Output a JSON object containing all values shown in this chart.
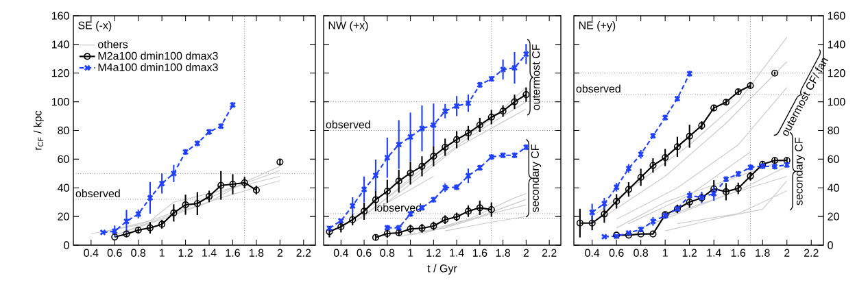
{
  "chart_data": [
    {
      "type": "line",
      "title": "SE (-x)",
      "ylabel": "r$_{CF}$ / kpc",
      "xlim": [
        0.25,
        2.3
      ],
      "ylim": [
        0,
        160
      ],
      "xticks": [
        0.4,
        0.6,
        0.8,
        1,
        1.2,
        1.4,
        1.6,
        1.8,
        2,
        2.2
      ],
      "yticks": [
        0,
        20,
        40,
        60,
        80,
        100,
        120,
        140,
        160
      ],
      "legend": "top left",
      "grid": false,
      "series": [
        {
          "name": "others",
          "color": "#cccccc",
          "marker": "none",
          "line_style": "solid",
          "x": [
            0.4,
            0.8,
            1.2,
            1.6,
            2.0
          ],
          "values": [
            8,
            14,
            26,
            40,
            52
          ]
        },
        {
          "color": "#cccccc",
          "marker": "none",
          "line_style": "solid",
          "x": [
            0.5,
            0.9,
            1.1,
            1.5,
            2.0
          ],
          "values": [
            9,
            17,
            30,
            38,
            48
          ]
        },
        {
          "color": "#cccccc",
          "marker": "none",
          "line_style": "solid",
          "x": [
            0.6,
            1.0,
            1.4,
            1.7,
            2.0
          ],
          "values": [
            7,
            18,
            30,
            44,
            55
          ]
        },
        {
          "color": "#cccccc",
          "marker": "none",
          "line_style": "solid",
          "x": [
            0.7,
            1.1,
            1.5,
            2.0
          ],
          "values": [
            10,
            22,
            33,
            45
          ]
        },
        {
          "name": "M2a100 dmin100 dmax3",
          "color": "#000000",
          "marker": "circle",
          "line_style": "solid",
          "x": [
            0.6,
            0.7,
            0.8,
            0.9,
            1.0,
            1.1,
            1.2,
            1.3,
            1.4,
            1.5,
            1.6,
            1.7,
            1.8,
            1.9,
            2.0
          ],
          "values": [
            5.7,
            7.8,
            10.5,
            12.1,
            14.6,
            22.5,
            28.2,
            29,
            34,
            41.7,
            42.5,
            43.6,
            38.4,
            null,
            58
          ],
          "errors": [
            null,
            2,
            2,
            4,
            3,
            6,
            7,
            8,
            4,
            10,
            7,
            4,
            3,
            null,
            2
          ]
        },
        {
          "name": "M4a100 dmin100 dmax3",
          "color": "#2040ff",
          "marker": "cross",
          "line_style": "dashed",
          "x": [
            0.5,
            0.6,
            0.7,
            0.8,
            0.9,
            1.0,
            1.1,
            1.2,
            1.3,
            1.4,
            1.5,
            1.6
          ],
          "values": [
            8.9,
            9.7,
            16.6,
            21.7,
            33,
            43,
            50,
            65,
            71,
            79,
            83,
            97.8
          ],
          "errors": [
            null,
            4,
            8,
            3,
            11,
            7,
            6,
            2,
            2,
            2,
            2,
            2
          ]
        }
      ],
      "ref_lines": [
        {
          "axis": "y",
          "value": 50,
          "color": "#404040",
          "line_style": "dotted"
        },
        {
          "axis": "y",
          "value": 32,
          "label": "observed",
          "color": "#404040",
          "line_style": "dotted"
        },
        {
          "axis": "x",
          "value": 1.7,
          "color": "#404040",
          "line_style": "dotted"
        }
      ]
    },
    {
      "type": "line",
      "title": "NW (+x)",
      "xlabel": "t / Gyr",
      "xlim": [
        0.25,
        2.3
      ],
      "ylim": [
        0,
        160
      ],
      "xticks": [
        0.4,
        0.6,
        0.8,
        1,
        1.2,
        1.4,
        1.6,
        1.8,
        2,
        2.2
      ],
      "yticks": [
        0,
        20,
        40,
        60,
        80,
        100,
        120,
        140,
        160
      ],
      "tick_labels": "x",
      "legend": false,
      "grid": false,
      "series": [
        {
          "color": "#cccccc",
          "marker": "none",
          "line_style": "solid",
          "x": [
            0.5,
            1.0,
            1.5,
            2.0
          ],
          "values": [
            15,
            45,
            75,
            100
          ]
        },
        {
          "color": "#cccccc",
          "marker": "none",
          "line_style": "solid",
          "x": [
            0.6,
            1.2,
            1.7,
            2.0
          ],
          "values": [
            20,
            60,
            88,
            110
          ]
        },
        {
          "color": "#cccccc",
          "marker": "none",
          "line_style": "solid",
          "x": [
            0.7,
            1.2
          ],
          "values": [
            25,
            48
          ]
        },
        {
          "color": "#cccccc",
          "marker": "none",
          "line_style": "solid",
          "x": [
            0.8,
            1.4,
            2.0
          ],
          "values": [
            30,
            68,
            95
          ]
        },
        {
          "color": "#cccccc",
          "marker": "none",
          "line_style": "solid",
          "x": [
            0.9,
            1.3,
            1.7,
            2.0
          ],
          "values": [
            6,
            12,
            22,
            28
          ]
        },
        {
          "color": "#cccccc",
          "marker": "none",
          "line_style": "solid",
          "x": [
            1.0,
            1.5,
            1.9,
            2.0
          ],
          "values": [
            7,
            18,
            33,
            36
          ]
        },
        {
          "color": "#cccccc",
          "marker": "none",
          "line_style": "solid",
          "x": [
            1.1,
            1.6,
            2.0
          ],
          "values": [
            8,
            20,
            32
          ]
        },
        {
          "color": "#cccccc",
          "marker": "none",
          "line_style": "solid",
          "x": [
            1.3,
            1.7,
            2.0
          ],
          "values": [
            10,
            16,
            20
          ]
        },
        {
          "color": "#000000",
          "marker": "circle",
          "line_style": "solid",
          "x": [
            0.3,
            0.4,
            0.5,
            0.6,
            0.7,
            0.8,
            0.9,
            1.0,
            1.1,
            1.2,
            1.3,
            1.4,
            1.5,
            1.6,
            1.7,
            1.8,
            1.9,
            2.0
          ],
          "values": [
            9.4,
            12.9,
            17.8,
            23.7,
            31.7,
            37.6,
            44.7,
            50.3,
            55,
            62,
            68.3,
            73.6,
            78.2,
            83.8,
            89.3,
            93.5,
            100,
            105
          ],
          "errors": [
            4,
            4,
            4,
            6,
            8,
            8,
            8,
            8,
            7,
            7,
            6,
            6,
            5,
            5,
            5,
            4,
            5,
            5
          ]
        },
        {
          "color": "#2040ff",
          "marker": "cross",
          "line_style": "dashed",
          "x": [
            0.3,
            0.4,
            0.5,
            0.6,
            0.7,
            0.8,
            0.9,
            1.0,
            1.1,
            1.2,
            1.3,
            1.4,
            1.5,
            1.6,
            1.7,
            1.8,
            1.9,
            2.0
          ],
          "values": [
            11.8,
            17,
            27.4,
            38.9,
            48.7,
            61,
            70.2,
            75.5,
            81.4,
            83.8,
            93.5,
            97,
            99,
            111.8,
            116,
            122.5,
            123.7,
            133.3
          ],
          "errors": [
            null,
            null,
            6,
            9,
            11,
            14,
            17,
            17,
            16,
            15,
            5,
            7,
            6,
            2,
            2,
            7,
            11,
            7
          ]
        },
        {
          "color": "#000000",
          "marker": "circle",
          "line_style": "solid",
          "x": [
            0.7,
            0.8,
            0.9,
            1.0,
            1.1,
            1.2,
            1.3,
            1.4,
            1.5,
            1.6,
            1.7
          ],
          "values": [
            5.4,
            8.1,
            8.6,
            11.3,
            11.8,
            13.4,
            17.8,
            19.7,
            23.7,
            26.1,
            24.8
          ],
          "errors": [
            2,
            3,
            2,
            3,
            3,
            3,
            3,
            3,
            4,
            5,
            5
          ]
        },
        {
          "color": "#2040ff",
          "marker": "cross",
          "line_style": "dashed",
          "x": [
            0.8,
            0.9,
            1.0,
            1.1,
            1.2,
            1.3,
            1.4,
            1.5,
            1.6,
            1.7,
            1.8,
            1.9,
            2.0
          ],
          "values": [
            12.1,
            12.1,
            21.8,
            26.1,
            31.7,
            40.1,
            40.4,
            48.4,
            54,
            61.5,
            62.7,
            62.7,
            68.3
          ],
          "errors": [
            2,
            2,
            2,
            2,
            2,
            3,
            2,
            5,
            2,
            2,
            2,
            2,
            2
          ]
        }
      ],
      "ref_lines": [
        {
          "axis": "y",
          "value": 100,
          "color": "#404040",
          "line_style": "dotted"
        },
        {
          "axis": "y",
          "value": 80,
          "label": "observed",
          "color": "#404040",
          "line_style": "dotted"
        },
        {
          "axis": "y",
          "value": 22,
          "label": "observed",
          "color": "#404040",
          "line_style": "dotted"
        },
        {
          "axis": "y",
          "value": 18.5,
          "color": "#404040",
          "line_style": "dotted"
        },
        {
          "axis": "x",
          "value": 1.7,
          "color": "#404040",
          "line_style": "dotted"
        }
      ],
      "annotations": [
        "outermost CF",
        "secondary CF"
      ]
    },
    {
      "type": "line",
      "title": "NE (+y)",
      "xlim": [
        0.25,
        2.3
      ],
      "ylim": [
        0,
        160
      ],
      "xticks": [
        0.4,
        0.6,
        0.8,
        1,
        1.2,
        1.4,
        1.6,
        1.8,
        2,
        2.2
      ],
      "yticks": [
        0,
        20,
        40,
        60,
        80,
        100,
        120,
        140,
        160
      ],
      "legend": false,
      "grid": false,
      "series": [
        {
          "color": "#cccccc",
          "marker": "none",
          "line_style": "solid",
          "x": [
            0.4,
            0.8,
            1.2,
            1.6,
            2.0
          ],
          "values": [
            20,
            45,
            70,
            100,
            145
          ]
        },
        {
          "color": "#cccccc",
          "marker": "none",
          "line_style": "solid",
          "x": [
            0.5,
            1.0,
            1.5,
            2.0
          ],
          "values": [
            20,
            48,
            85,
            128
          ]
        },
        {
          "color": "#cccccc",
          "marker": "none",
          "line_style": "solid",
          "x": [
            0.6,
            1.1,
            1.6,
            2.0
          ],
          "values": [
            18,
            40,
            70,
            110
          ]
        },
        {
          "color": "#cccccc",
          "marker": "none",
          "line_style": "solid",
          "x": [
            0.7,
            1.2,
            1.7
          ],
          "values": [
            15,
            35,
            65
          ]
        },
        {
          "color": "#cccccc",
          "marker": "none",
          "line_style": "solid",
          "x": [
            0.6,
            1.0,
            1.5,
            2.0
          ],
          "values": [
            12,
            30,
            45,
            60
          ]
        },
        {
          "color": "#cccccc",
          "marker": "none",
          "line_style": "solid",
          "x": [
            1.0,
            1.5,
            2.0
          ],
          "values": [
            20,
            35,
            48
          ]
        },
        {
          "color": "#cccccc",
          "marker": "none",
          "line_style": "solid",
          "x": [
            1.0,
            1.5,
            1.8,
            2.0
          ],
          "values": [
            10,
            20,
            25,
            45
          ]
        },
        {
          "color": "#cccccc",
          "marker": "none",
          "line_style": "solid",
          "x": [
            1.1,
            1.6,
            1.8,
            2.0
          ],
          "values": [
            15,
            22,
            30,
            38
          ]
        },
        {
          "color": "#cccccc",
          "marker": "none",
          "line_style": "solid",
          "x": [
            0.8,
            1.2,
            1.6,
            2.0
          ],
          "values": [
            12,
            25,
            38,
            55
          ]
        },
        {
          "color": "#000000",
          "marker": "circle",
          "line_style": "solid",
          "x": [
            0.3,
            0.4,
            0.5,
            0.6,
            0.7,
            0.8,
            0.9,
            1.0,
            1.1,
            1.2,
            1.3,
            1.4,
            1.5,
            1.6,
            1.7,
            1.8,
            1.9
          ],
          "values": [
            15.4,
            15.4,
            21.7,
            30.6,
            38.9,
            47.3,
            55.6,
            61.1,
            68.6,
            76,
            83.4,
            95.7,
            99.7,
            107,
            111.3,
            null,
            120
          ],
          "errors": [
            10,
            5,
            6,
            5,
            5,
            6,
            5,
            6,
            7,
            8,
            3,
            2,
            2,
            2,
            2,
            null,
            1
          ]
        },
        {
          "color": "#2040ff",
          "marker": "cross",
          "line_style": "dashed",
          "x": [
            0.4,
            0.5,
            0.6,
            0.7,
            0.8,
            0.9,
            1.0,
            1.1,
            1.2
          ],
          "values": [
            22.9,
            29,
            40.4,
            53.5,
            63.4,
            76.3,
            89,
            102.2,
            119.6
          ],
          "errors": [
            6,
            4,
            3,
            3,
            3,
            2,
            2,
            2,
            2
          ]
        },
        {
          "color": "#000000",
          "marker": "circle",
          "line_style": "solid",
          "x": [
            0.6,
            0.7,
            0.8,
            0.9,
            1.0,
            1.1,
            1.2,
            1.3,
            1.4,
            1.5,
            1.6,
            1.7,
            1.8,
            1.9,
            2.0
          ],
          "values": [
            7,
            7,
            7.8,
            7.8,
            21.3,
            25.3,
            30.1,
            33,
            39.3,
            37.3,
            39.6,
            48.1,
            56.4,
            59.1,
            59.1
          ],
          "errors": [
            null,
            null,
            null,
            null,
            2,
            3,
            4,
            3,
            6,
            6,
            4,
            3,
            2,
            2,
            2
          ]
        },
        {
          "color": "#2040ff",
          "marker": "cross",
          "line_style": "dashed",
          "x": [
            0.5,
            0.6,
            0.7,
            0.8,
            0.9,
            1.0,
            1.1,
            1.2,
            1.3,
            1.4,
            1.5,
            1.6,
            1.7,
            1.8,
            1.9,
            2.0
          ],
          "values": [
            5.9,
            6.2,
            8.6,
            11,
            16.6,
            20.5,
            25.3,
            34.6,
            33.3,
            36,
            46,
            49.7,
            54.3,
            55.1,
            54.8,
            56
          ],
          "errors": [
            null,
            null,
            null,
            2,
            3,
            2,
            2,
            3,
            4,
            5,
            2,
            2,
            2,
            2,
            2,
            2
          ]
        }
      ],
      "ref_lines": [
        {
          "axis": "y",
          "value": 120,
          "color": "#404040",
          "line_style": "dotted"
        },
        {
          "axis": "y",
          "value": 105,
          "label": "observed",
          "color": "#404040",
          "line_style": "dotted"
        },
        {
          "axis": "x",
          "value": 1.7,
          "color": "#404040",
          "line_style": "dotted"
        }
      ],
      "annotations": [
        "outermost CF/ fan",
        "secondary CF"
      ]
    }
  ]
}
